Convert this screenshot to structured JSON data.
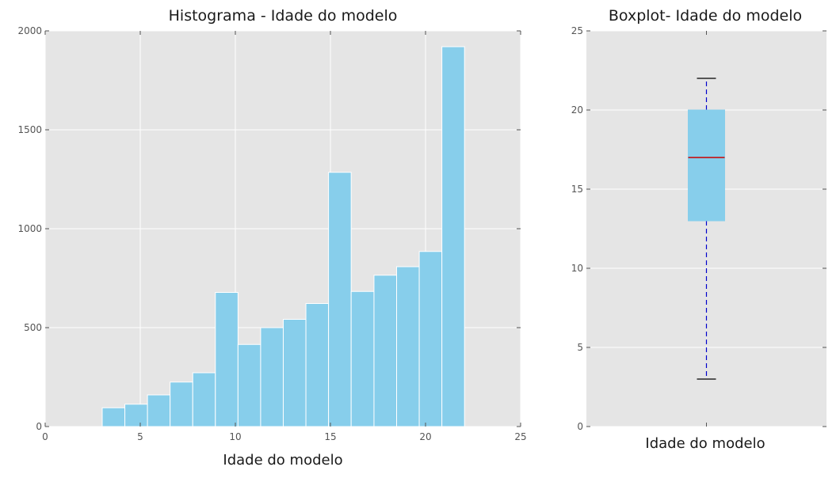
{
  "chart_data": [
    {
      "type": "bar",
      "title": "Histograma - Idade do modelo",
      "xlabel": "Idade do modelo",
      "ylabel": "",
      "xlim": [
        0,
        25
      ],
      "ylim": [
        0,
        2000
      ],
      "x_ticks": [
        "0",
        "5",
        "10",
        "15",
        "20",
        "25"
      ],
      "y_ticks": [
        "0",
        "500",
        "1000",
        "1500",
        "2000"
      ],
      "grid": true,
      "bar_color": "#87CEEB",
      "bins": [
        {
          "start": 3.0,
          "end": 4.19,
          "value": 95
        },
        {
          "start": 4.19,
          "end": 5.38,
          "value": 113
        },
        {
          "start": 5.38,
          "end": 6.57,
          "value": 160
        },
        {
          "start": 6.57,
          "end": 7.76,
          "value": 225
        },
        {
          "start": 7.76,
          "end": 8.95,
          "value": 272
        },
        {
          "start": 8.95,
          "end": 10.14,
          "value": 678
        },
        {
          "start": 10.14,
          "end": 11.33,
          "value": 415
        },
        {
          "start": 11.33,
          "end": 12.52,
          "value": 500
        },
        {
          "start": 12.52,
          "end": 13.71,
          "value": 542
        },
        {
          "start": 13.71,
          "end": 14.9,
          "value": 622
        },
        {
          "start": 14.9,
          "end": 16.09,
          "value": 1285
        },
        {
          "start": 16.09,
          "end": 17.29,
          "value": 683
        },
        {
          "start": 17.29,
          "end": 18.48,
          "value": 765
        },
        {
          "start": 18.48,
          "end": 19.67,
          "value": 808
        },
        {
          "start": 19.67,
          "end": 20.86,
          "value": 885
        },
        {
          "start": 20.86,
          "end": 22.05,
          "value": 1920
        }
      ]
    },
    {
      "type": "box",
      "title": "Boxplot- Idade do modelo",
      "xlabel": "Idade do modelo",
      "ylim": [
        0,
        25
      ],
      "y_ticks": [
        "0",
        "5",
        "10",
        "15",
        "20",
        "25"
      ],
      "grid": true,
      "box": {
        "whisker_low": 3,
        "q1": 13,
        "median": 17,
        "q3": 20,
        "whisker_high": 22
      },
      "box_color": "#87CEEB",
      "median_color": "#cc0000",
      "whisker_color": "#0000cc",
      "cap_color": "#000000"
    }
  ]
}
